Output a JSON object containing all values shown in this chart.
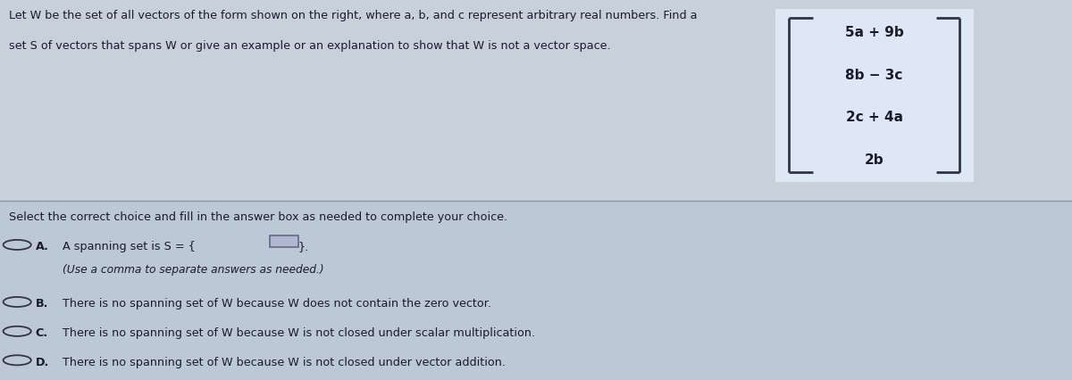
{
  "bg_color": "#b8c4d0",
  "panel_color": "#c8d4e0",
  "text_color": "#1a1a2e",
  "vector_box_color": "#dde8f0",
  "vector_box_edge": "#555566",
  "title_line1": "Let W be the set of all vectors of the form shown on the right, where a, b, and c represent arbitrary real numbers. Find a",
  "title_line2": "set S of vectors that spans W or give an example or an explanation to show that W is not a vector space.",
  "vector_entries": [
    "5a + 9b",
    "8b − 3c",
    "2c + 4a",
    "2b"
  ],
  "select_text": "Select the correct choice and fill in the answer box as needed to complete your choice.",
  "choice_A_text": "A spanning set is S = {",
  "choice_A_label": "A.",
  "choice_A_sub": "(Use a comma to separate answers as needed.)",
  "choice_B_label": "B.",
  "choice_B_text": "There is no spanning set of W because W does not contain the zero vector.",
  "choice_C_label": "C.",
  "choice_C_text": "There is no spanning set of W because W is not closed under scalar multiplication.",
  "choice_D_label": "D.",
  "choice_D_text": "There is no spanning set of W because W is not closed under vector addition.",
  "answer_box_color": "#b0b8d0",
  "answer_box_edge": "#666688",
  "divider_color": "#8899aa",
  "figsize": [
    12.0,
    4.27
  ],
  "dpi": 100
}
